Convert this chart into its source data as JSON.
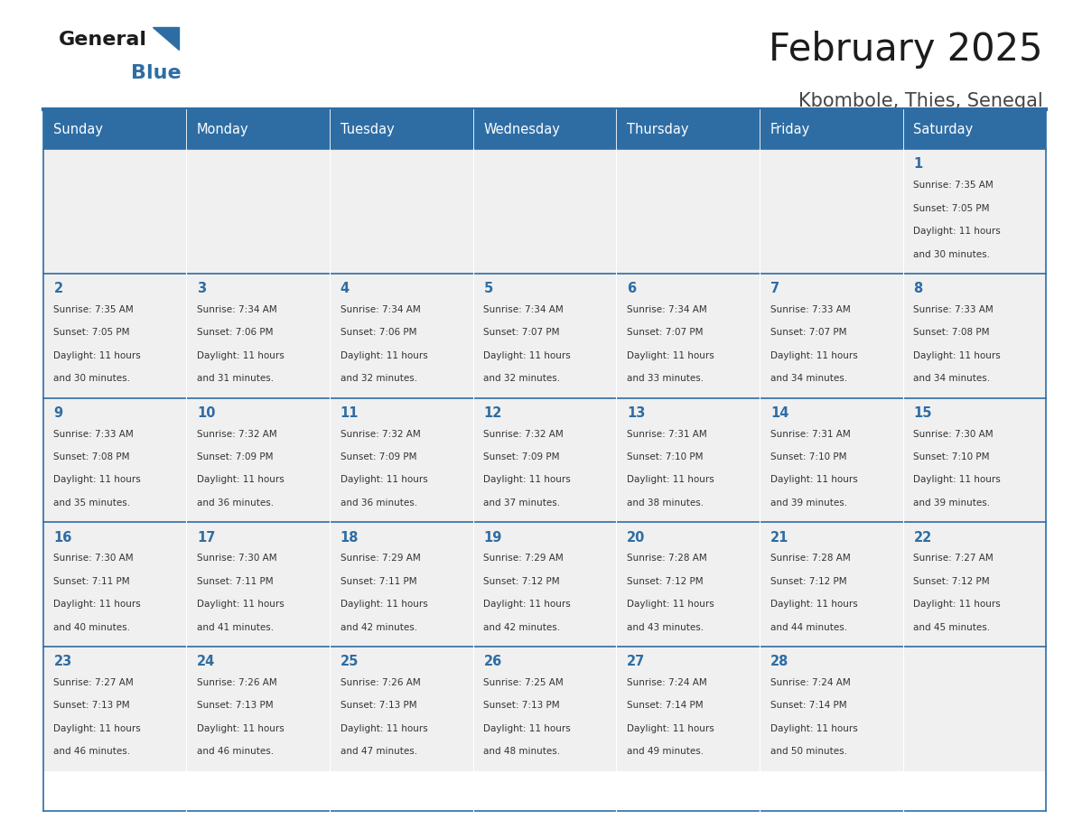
{
  "title": "February 2025",
  "subtitle": "Kbombole, Thies, Senegal",
  "header_bg": "#2E6DA4",
  "header_text": "#FFFFFF",
  "cell_bg_light": "#F0F0F0",
  "day_number_color": "#2E6DA4",
  "info_text_color": "#333333",
  "days_of_week": [
    "Sunday",
    "Monday",
    "Tuesday",
    "Wednesday",
    "Thursday",
    "Friday",
    "Saturday"
  ],
  "calendar_data": [
    [
      null,
      null,
      null,
      null,
      null,
      null,
      {
        "day": 1,
        "sunrise": "7:35 AM",
        "sunset": "7:05 PM",
        "daylight": "11 hours",
        "daylight2": "and 30 minutes."
      }
    ],
    [
      {
        "day": 2,
        "sunrise": "7:35 AM",
        "sunset": "7:05 PM",
        "daylight": "11 hours",
        "daylight2": "and 30 minutes."
      },
      {
        "day": 3,
        "sunrise": "7:34 AM",
        "sunset": "7:06 PM",
        "daylight": "11 hours",
        "daylight2": "and 31 minutes."
      },
      {
        "day": 4,
        "sunrise": "7:34 AM",
        "sunset": "7:06 PM",
        "daylight": "11 hours",
        "daylight2": "and 32 minutes."
      },
      {
        "day": 5,
        "sunrise": "7:34 AM",
        "sunset": "7:07 PM",
        "daylight": "11 hours",
        "daylight2": "and 32 minutes."
      },
      {
        "day": 6,
        "sunrise": "7:34 AM",
        "sunset": "7:07 PM",
        "daylight": "11 hours",
        "daylight2": "and 33 minutes."
      },
      {
        "day": 7,
        "sunrise": "7:33 AM",
        "sunset": "7:07 PM",
        "daylight": "11 hours",
        "daylight2": "and 34 minutes."
      },
      {
        "day": 8,
        "sunrise": "7:33 AM",
        "sunset": "7:08 PM",
        "daylight": "11 hours",
        "daylight2": "and 34 minutes."
      }
    ],
    [
      {
        "day": 9,
        "sunrise": "7:33 AM",
        "sunset": "7:08 PM",
        "daylight": "11 hours",
        "daylight2": "and 35 minutes."
      },
      {
        "day": 10,
        "sunrise": "7:32 AM",
        "sunset": "7:09 PM",
        "daylight": "11 hours",
        "daylight2": "and 36 minutes."
      },
      {
        "day": 11,
        "sunrise": "7:32 AM",
        "sunset": "7:09 PM",
        "daylight": "11 hours",
        "daylight2": "and 36 minutes."
      },
      {
        "day": 12,
        "sunrise": "7:32 AM",
        "sunset": "7:09 PM",
        "daylight": "11 hours",
        "daylight2": "and 37 minutes."
      },
      {
        "day": 13,
        "sunrise": "7:31 AM",
        "sunset": "7:10 PM",
        "daylight": "11 hours",
        "daylight2": "and 38 minutes."
      },
      {
        "day": 14,
        "sunrise": "7:31 AM",
        "sunset": "7:10 PM",
        "daylight": "11 hours",
        "daylight2": "and 39 minutes."
      },
      {
        "day": 15,
        "sunrise": "7:30 AM",
        "sunset": "7:10 PM",
        "daylight": "11 hours",
        "daylight2": "and 39 minutes."
      }
    ],
    [
      {
        "day": 16,
        "sunrise": "7:30 AM",
        "sunset": "7:11 PM",
        "daylight": "11 hours",
        "daylight2": "and 40 minutes."
      },
      {
        "day": 17,
        "sunrise": "7:30 AM",
        "sunset": "7:11 PM",
        "daylight": "11 hours",
        "daylight2": "and 41 minutes."
      },
      {
        "day": 18,
        "sunrise": "7:29 AM",
        "sunset": "7:11 PM",
        "daylight": "11 hours",
        "daylight2": "and 42 minutes."
      },
      {
        "day": 19,
        "sunrise": "7:29 AM",
        "sunset": "7:12 PM",
        "daylight": "11 hours",
        "daylight2": "and 42 minutes."
      },
      {
        "day": 20,
        "sunrise": "7:28 AM",
        "sunset": "7:12 PM",
        "daylight": "11 hours",
        "daylight2": "and 43 minutes."
      },
      {
        "day": 21,
        "sunrise": "7:28 AM",
        "sunset": "7:12 PM",
        "daylight": "11 hours",
        "daylight2": "and 44 minutes."
      },
      {
        "day": 22,
        "sunrise": "7:27 AM",
        "sunset": "7:12 PM",
        "daylight": "11 hours",
        "daylight2": "and 45 minutes."
      }
    ],
    [
      {
        "day": 23,
        "sunrise": "7:27 AM",
        "sunset": "7:13 PM",
        "daylight": "11 hours",
        "daylight2": "and 46 minutes."
      },
      {
        "day": 24,
        "sunrise": "7:26 AM",
        "sunset": "7:13 PM",
        "daylight": "11 hours",
        "daylight2": "and 46 minutes."
      },
      {
        "day": 25,
        "sunrise": "7:26 AM",
        "sunset": "7:13 PM",
        "daylight": "11 hours",
        "daylight2": "and 47 minutes."
      },
      {
        "day": 26,
        "sunrise": "7:25 AM",
        "sunset": "7:13 PM",
        "daylight": "11 hours",
        "daylight2": "and 48 minutes."
      },
      {
        "day": 27,
        "sunrise": "7:24 AM",
        "sunset": "7:14 PM",
        "daylight": "11 hours",
        "daylight2": "and 49 minutes."
      },
      {
        "day": 28,
        "sunrise": "7:24 AM",
        "sunset": "7:14 PM",
        "daylight": "11 hours",
        "daylight2": "and 50 minutes."
      },
      null
    ]
  ]
}
